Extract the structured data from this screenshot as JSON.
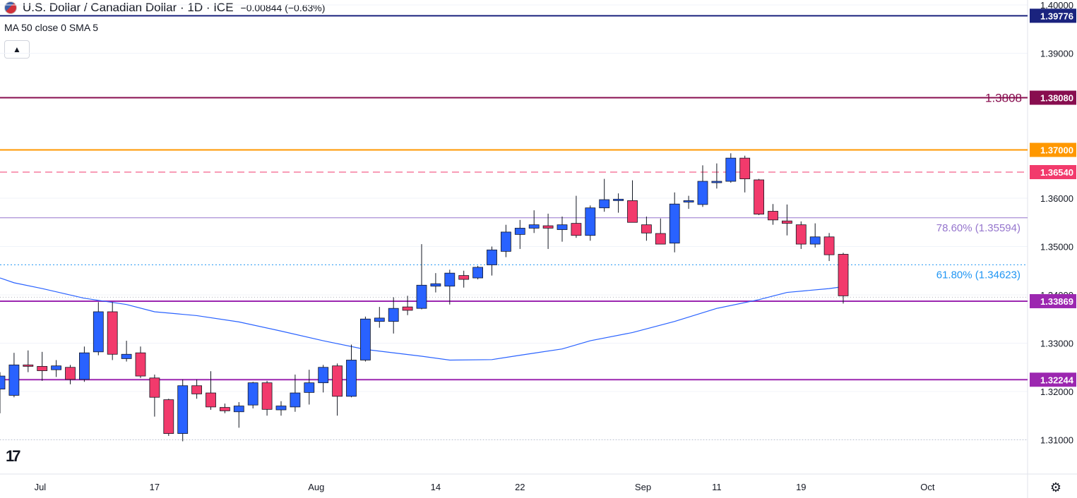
{
  "header": {
    "title": "U.S. Dollar / Canadian Dollar · 1D · ICE",
    "change": "−0.00844 (−0.63%)",
    "indicator": "MA 50 close 0 SMA 5",
    "collapse_icon": "chevron-up-icon"
  },
  "colors": {
    "up": "#2962ff",
    "down": "#f23a6c",
    "ma": "#2962ff",
    "axis_text": "#131722",
    "grid": "#e0e3eb"
  },
  "chart_data": {
    "type": "candlestick",
    "x_tick_labels": [
      "Jul",
      "17",
      "Aug",
      "14",
      "22",
      "Sep",
      "11",
      "19",
      "Oct"
    ],
    "y_ticks": [
      "1.40000",
      "1.39000",
      "1.36000",
      "1.35000",
      "1.34000",
      "1.33000",
      "1.32000",
      "1.31000"
    ],
    "ylim": [
      1.3065,
      1.4005
    ],
    "horizontal_levels": [
      {
        "value": 1.39776,
        "label": "1.39776",
        "color": "#1a237e",
        "style": "solid",
        "badge": true
      },
      {
        "value": 1.3808,
        "label": "1.38080",
        "text": "1.3808",
        "color": "#880e4f",
        "style": "solid",
        "badge": true
      },
      {
        "value": 1.37,
        "label": "1.37000",
        "color": "#ff9800",
        "style": "solid",
        "badge": true
      },
      {
        "value": 1.3654,
        "label": "1.36540",
        "color": "#f23a6c",
        "style": "dashed",
        "badge": true
      },
      {
        "value": 1.35594,
        "label": "",
        "text": "78.60% (1.35594)",
        "color": "#9575cd",
        "style": "solid",
        "badge": false
      },
      {
        "value": 1.34623,
        "label": "",
        "text": "61.80% (1.34623)",
        "color": "#2196f3",
        "style": "dotted",
        "badge": false
      },
      {
        "value": 1.33869,
        "label": "1.33869",
        "color": "#9c27b0",
        "style": "solid",
        "badge": true
      },
      {
        "value": 1.32244,
        "label": "1.32244",
        "color": "#9c27b0",
        "style": "solid",
        "badge": true
      }
    ],
    "candles": [
      {
        "date": "Jun 30",
        "o": 1.3205,
        "h": 1.324,
        "l": 1.3155,
        "c": 1.3232
      },
      {
        "date": "Jul 3",
        "o": 1.3192,
        "h": 1.328,
        "l": 1.3188,
        "c": 1.3255
      },
      {
        "date": "Jul 4",
        "o": 1.3255,
        "h": 1.3285,
        "l": 1.324,
        "c": 1.3252
      },
      {
        "date": "Jul 5",
        "o": 1.3252,
        "h": 1.3282,
        "l": 1.3222,
        "c": 1.3243
      },
      {
        "date": "Jul 6",
        "o": 1.3245,
        "h": 1.3265,
        "l": 1.323,
        "c": 1.3253
      },
      {
        "date": "Jul 7",
        "o": 1.325,
        "h": 1.3255,
        "l": 1.3215,
        "c": 1.3225
      },
      {
        "date": "Jul 10",
        "o": 1.3225,
        "h": 1.3293,
        "l": 1.322,
        "c": 1.328
      },
      {
        "date": "Jul 11",
        "o": 1.3282,
        "h": 1.3385,
        "l": 1.3275,
        "c": 1.3365
      },
      {
        "date": "Jul 12",
        "o": 1.3365,
        "h": 1.3385,
        "l": 1.3265,
        "c": 1.3277
      },
      {
        "date": "Jul 13",
        "o": 1.3268,
        "h": 1.3305,
        "l": 1.3262,
        "c": 1.3277
      },
      {
        "date": "Jul 14",
        "o": 1.328,
        "h": 1.3293,
        "l": 1.3228,
        "c": 1.3232
      },
      {
        "date": "Jul 17",
        "o": 1.3228,
        "h": 1.3235,
        "l": 1.3148,
        "c": 1.3188
      },
      {
        "date": "Jul 18",
        "o": 1.3183,
        "h": 1.3185,
        "l": 1.3108,
        "c": 1.3113
      },
      {
        "date": "Jul 19",
        "o": 1.3113,
        "h": 1.3225,
        "l": 1.3097,
        "c": 1.3212
      },
      {
        "date": "Jul 20",
        "o": 1.3212,
        "h": 1.3225,
        "l": 1.3185,
        "c": 1.3195
      },
      {
        "date": "Jul 21",
        "o": 1.3197,
        "h": 1.3242,
        "l": 1.3162,
        "c": 1.3168
      },
      {
        "date": "Jul 24",
        "o": 1.3167,
        "h": 1.3175,
        "l": 1.3155,
        "c": 1.316
      },
      {
        "date": "Jul 25",
        "o": 1.3158,
        "h": 1.3178,
        "l": 1.3125,
        "c": 1.317
      },
      {
        "date": "Jul 26",
        "o": 1.3172,
        "h": 1.322,
        "l": 1.3165,
        "c": 1.3218
      },
      {
        "date": "Jul 27",
        "o": 1.3218,
        "h": 1.3222,
        "l": 1.315,
        "c": 1.3163
      },
      {
        "date": "Jul 28",
        "o": 1.3162,
        "h": 1.318,
        "l": 1.315,
        "c": 1.317
      },
      {
        "date": "Jul 31",
        "o": 1.3168,
        "h": 1.3235,
        "l": 1.3158,
        "c": 1.3197
      },
      {
        "date": "Aug 1",
        "o": 1.3198,
        "h": 1.3245,
        "l": 1.3173,
        "c": 1.3218
      },
      {
        "date": "Aug 2",
        "o": 1.3218,
        "h": 1.3255,
        "l": 1.3198,
        "c": 1.325
      },
      {
        "date": "Aug 3",
        "o": 1.3253,
        "h": 1.3258,
        "l": 1.315,
        "c": 1.319
      },
      {
        "date": "Aug 4",
        "o": 1.319,
        "h": 1.3297,
        "l": 1.3188,
        "c": 1.3265
      },
      {
        "date": "Aug 7",
        "o": 1.3265,
        "h": 1.3355,
        "l": 1.3262,
        "c": 1.335
      },
      {
        "date": "Aug 8",
        "o": 1.3345,
        "h": 1.3375,
        "l": 1.3332,
        "c": 1.3352
      },
      {
        "date": "Aug 9",
        "o": 1.3345,
        "h": 1.3395,
        "l": 1.332,
        "c": 1.3372
      },
      {
        "date": "Aug 10",
        "o": 1.3375,
        "h": 1.3398,
        "l": 1.3358,
        "c": 1.3368
      },
      {
        "date": "Aug 11",
        "o": 1.3372,
        "h": 1.3505,
        "l": 1.337,
        "c": 1.342
      },
      {
        "date": "Aug 14",
        "o": 1.3418,
        "h": 1.3445,
        "l": 1.3405,
        "c": 1.3423
      },
      {
        "date": "Aug 15",
        "o": 1.3418,
        "h": 1.3452,
        "l": 1.338,
        "c": 1.3445
      },
      {
        "date": "Aug 16",
        "o": 1.344,
        "h": 1.345,
        "l": 1.3415,
        "c": 1.3432
      },
      {
        "date": "Aug 17",
        "o": 1.3435,
        "h": 1.346,
        "l": 1.3432,
        "c": 1.3457
      },
      {
        "date": "Aug 18",
        "o": 1.3462,
        "h": 1.35,
        "l": 1.344,
        "c": 1.3493
      },
      {
        "date": "Aug 21",
        "o": 1.349,
        "h": 1.3545,
        "l": 1.3478,
        "c": 1.353
      },
      {
        "date": "Aug 22",
        "o": 1.3525,
        "h": 1.3555,
        "l": 1.3495,
        "c": 1.3538
      },
      {
        "date": "Aug 23",
        "o": 1.3538,
        "h": 1.3575,
        "l": 1.3528,
        "c": 1.3545
      },
      {
        "date": "Aug 24",
        "o": 1.3543,
        "h": 1.3568,
        "l": 1.3495,
        "c": 1.3538
      },
      {
        "date": "Aug 25",
        "o": 1.3535,
        "h": 1.3562,
        "l": 1.351,
        "c": 1.3545
      },
      {
        "date": "Aug 28",
        "o": 1.3548,
        "h": 1.3605,
        "l": 1.3518,
        "c": 1.3523
      },
      {
        "date": "Aug 29",
        "o": 1.3523,
        "h": 1.3585,
        "l": 1.3512,
        "c": 1.358
      },
      {
        "date": "Aug 30",
        "o": 1.358,
        "h": 1.364,
        "l": 1.3572,
        "c": 1.3597
      },
      {
        "date": "Aug 31",
        "o": 1.3595,
        "h": 1.361,
        "l": 1.357,
        "c": 1.3598
      },
      {
        "date": "Sep 1",
        "o": 1.3595,
        "h": 1.3637,
        "l": 1.3555,
        "c": 1.355
      },
      {
        "date": "Sep 4",
        "o": 1.3545,
        "h": 1.3562,
        "l": 1.3512,
        "c": 1.3528
      },
      {
        "date": "Sep 5",
        "o": 1.3527,
        "h": 1.3558,
        "l": 1.3505,
        "c": 1.3505
      },
      {
        "date": "Sep 6",
        "o": 1.3507,
        "h": 1.3612,
        "l": 1.3488,
        "c": 1.3588
      },
      {
        "date": "Sep 7",
        "o": 1.3592,
        "h": 1.3605,
        "l": 1.3578,
        "c": 1.3595
      },
      {
        "date": "Sep 8",
        "o": 1.3587,
        "h": 1.3668,
        "l": 1.3582,
        "c": 1.3635
      },
      {
        "date": "Sep 11",
        "o": 1.3633,
        "h": 1.3672,
        "l": 1.362,
        "c": 1.3635
      },
      {
        "date": "Sep 12",
        "o": 1.3635,
        "h": 1.3693,
        "l": 1.3632,
        "c": 1.3683
      },
      {
        "date": "Sep 13",
        "o": 1.3683,
        "h": 1.3688,
        "l": 1.3612,
        "c": 1.364
      },
      {
        "date": "Sep 14",
        "o": 1.3638,
        "h": 1.364,
        "l": 1.3565,
        "c": 1.3567
      },
      {
        "date": "Sep 15",
        "o": 1.3573,
        "h": 1.3588,
        "l": 1.3545,
        "c": 1.3555
      },
      {
        "date": "Sep 18",
        "o": 1.3553,
        "h": 1.3587,
        "l": 1.3523,
        "c": 1.3548
      },
      {
        "date": "Sep 19",
        "o": 1.3545,
        "h": 1.3552,
        "l": 1.3495,
        "c": 1.3505
      },
      {
        "date": "Sep 20",
        "o": 1.3505,
        "h": 1.3548,
        "l": 1.3498,
        "c": 1.352
      },
      {
        "date": "Sep 21",
        "o": 1.352,
        "h": 1.3528,
        "l": 1.347,
        "c": 1.3483
      },
      {
        "date": "Sep 22",
        "o": 1.3484,
        "h": 1.3487,
        "l": 1.3382,
        "c": 1.3398
      }
    ],
    "ma_line": [
      {
        "date": "Jun 30",
        "v": 1.3435
      },
      {
        "date": "Jul 3",
        "v": 1.3425
      },
      {
        "date": "Jul 5",
        "v": 1.3413
      },
      {
        "date": "Jul 10",
        "v": 1.3393
      },
      {
        "date": "Jul 13",
        "v": 1.338
      },
      {
        "date": "Jul 17",
        "v": 1.3365
      },
      {
        "date": "Jul 20",
        "v": 1.3357
      },
      {
        "date": "Jul 25",
        "v": 1.3344
      },
      {
        "date": "Jul 28",
        "v": 1.3325
      },
      {
        "date": "Aug 2",
        "v": 1.3305
      },
      {
        "date": "Aug 7",
        "v": 1.3287
      },
      {
        "date": "Aug 11",
        "v": 1.3273
      },
      {
        "date": "Aug 15",
        "v": 1.3265
      },
      {
        "date": "Aug 18",
        "v": 1.3266
      },
      {
        "date": "Aug 22",
        "v": 1.3275
      },
      {
        "date": "Aug 25",
        "v": 1.3288
      },
      {
        "date": "Aug 29",
        "v": 1.3305
      },
      {
        "date": "Sep 1",
        "v": 1.3322
      },
      {
        "date": "Sep 6",
        "v": 1.3345
      },
      {
        "date": "Sep 11",
        "v": 1.3372
      },
      {
        "date": "Sep 14",
        "v": 1.339
      },
      {
        "date": "Sep 18",
        "v": 1.3405
      },
      {
        "date": "Sep 21",
        "v": 1.3413
      },
      {
        "date": "Sep 22",
        "v": 1.3417
      }
    ]
  }
}
